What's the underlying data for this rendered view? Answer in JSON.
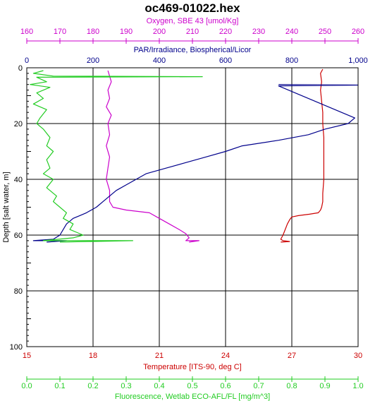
{
  "chart_data": {
    "type": "line",
    "title": "oc469-01022.hex",
    "y_axis": {
      "label": "Depth [salt water, m]",
      "range": [
        0,
        100
      ],
      "inverted": true,
      "ticks": [
        0,
        20,
        40,
        60,
        80,
        100
      ],
      "tick_labels": [
        "0",
        "20",
        "40",
        "60",
        "80",
        "100"
      ],
      "color": "#000000"
    },
    "x_axes": [
      {
        "id": "oxygen",
        "label": "Oxygen, SBE 43 [umol/Kg]",
        "position": "top",
        "range": [
          160,
          260
        ],
        "ticks": [
          160,
          170,
          180,
          190,
          200,
          210,
          220,
          230,
          240,
          250,
          260
        ],
        "tick_labels": [
          "160",
          "170",
          "180",
          "190",
          "200",
          "210",
          "220",
          "230",
          "240",
          "250",
          "260"
        ],
        "color": "#cc00cc"
      },
      {
        "id": "par",
        "label": "PAR/Irradiance, Biospherical/Licor",
        "position": "top",
        "range": [
          0,
          1000
        ],
        "ticks": [
          0,
          200,
          400,
          600,
          800,
          1000
        ],
        "tick_labels": [
          "0",
          "200",
          "400",
          "600",
          "800",
          "1,000"
        ],
        "color": "#00008b"
      },
      {
        "id": "temperature",
        "label": "Temperature [ITS-90, deg C]",
        "position": "bottom",
        "range": [
          15,
          30
        ],
        "ticks": [
          15,
          18,
          21,
          24,
          27,
          30
        ],
        "tick_labels": [
          "15",
          "18",
          "21",
          "24",
          "27",
          "30"
        ],
        "color": "#cc0000"
      },
      {
        "id": "fluorescence",
        "label": "Fluorescence, Wetlab ECO-AFL/FL [mg/m^3]",
        "position": "bottom",
        "range": [
          0,
          1
        ],
        "ticks": [
          0,
          0.1,
          0.2,
          0.3,
          0.4,
          0.5,
          0.6,
          0.7,
          0.8,
          0.9,
          1.0
        ],
        "tick_labels": [
          "0.0",
          "0.1",
          "0.2",
          "0.3",
          "0.4",
          "0.5",
          "0.6",
          "0.7",
          "0.8",
          "0.9",
          "1.0"
        ],
        "color": "#22cc22"
      }
    ],
    "grid": true,
    "series": [
      {
        "axis": "temperature",
        "color": "#cc0000",
        "points": [
          [
            28.4,
            0.5
          ],
          [
            28.3,
            2
          ],
          [
            28.35,
            5
          ],
          [
            28.3,
            8
          ],
          [
            28.35,
            12
          ],
          [
            28.4,
            16
          ],
          [
            28.4,
            20
          ],
          [
            28.45,
            25
          ],
          [
            28.45,
            30
          ],
          [
            28.45,
            35
          ],
          [
            28.45,
            40
          ],
          [
            28.4,
            45
          ],
          [
            28.4,
            48
          ],
          [
            28.35,
            50
          ],
          [
            28.3,
            51
          ],
          [
            28.2,
            52
          ],
          [
            27.8,
            52.5
          ],
          [
            27.3,
            53
          ],
          [
            27.0,
            53.5
          ],
          [
            26.9,
            54.5
          ],
          [
            26.8,
            56
          ],
          [
            26.7,
            58
          ],
          [
            26.6,
            60
          ],
          [
            26.5,
            61.5
          ],
          [
            26.6,
            62
          ],
          [
            26.9,
            62.3
          ],
          [
            26.5,
            62.5
          ]
        ]
      },
      {
        "axis": "oxygen",
        "color": "#cc00cc",
        "points": [
          [
            184.5,
            1
          ],
          [
            185,
            3
          ],
          [
            185.5,
            5
          ],
          [
            184.5,
            8
          ],
          [
            185,
            11
          ],
          [
            184,
            14
          ],
          [
            185.5,
            17
          ],
          [
            184.5,
            20
          ],
          [
            185,
            24
          ],
          [
            184,
            28
          ],
          [
            185,
            32
          ],
          [
            184.5,
            36
          ],
          [
            184,
            40
          ],
          [
            185,
            44
          ],
          [
            185,
            48
          ],
          [
            186,
            50
          ],
          [
            190,
            51
          ],
          [
            197,
            52
          ],
          [
            200,
            54
          ],
          [
            203,
            56
          ],
          [
            206,
            58
          ],
          [
            208,
            59.5
          ],
          [
            209,
            61
          ],
          [
            208,
            62
          ],
          [
            212,
            62
          ],
          [
            209,
            62.5
          ]
        ]
      },
      {
        "axis": "par",
        "color": "#00008b",
        "points": [
          [
            760,
            6
          ],
          [
            1000,
            6.2
          ],
          [
            760,
            6.5
          ],
          [
            990,
            18
          ],
          [
            970,
            20
          ],
          [
            900,
            22
          ],
          [
            850,
            24
          ],
          [
            760,
            26
          ],
          [
            650,
            28
          ],
          [
            600,
            30
          ],
          [
            540,
            32
          ],
          [
            480,
            34
          ],
          [
            420,
            36
          ],
          [
            360,
            38
          ],
          [
            330,
            40
          ],
          [
            300,
            42
          ],
          [
            270,
            44
          ],
          [
            250,
            46
          ],
          [
            230,
            48
          ],
          [
            210,
            50
          ],
          [
            180,
            52
          ],
          [
            160,
            53
          ],
          [
            140,
            54
          ],
          [
            120,
            56
          ],
          [
            110,
            58
          ],
          [
            100,
            60
          ],
          [
            80,
            61.5
          ],
          [
            20,
            62
          ],
          [
            120,
            62
          ],
          [
            60,
            62.5
          ]
        ]
      },
      {
        "axis": "fluorescence",
        "color": "#22cc22",
        "points": [
          [
            0.05,
            1
          ],
          [
            0.02,
            2
          ],
          [
            0.08,
            3
          ],
          [
            0.53,
            3.2
          ],
          [
            0.03,
            3.4
          ],
          [
            0.06,
            5
          ],
          [
            0.01,
            6
          ],
          [
            0.07,
            7
          ],
          [
            0.03,
            9
          ],
          [
            0.05,
            11
          ],
          [
            0.02,
            13
          ],
          [
            0.06,
            15
          ],
          [
            0.04,
            18
          ],
          [
            0.03,
            20
          ],
          [
            0.05,
            22
          ],
          [
            0.07,
            25
          ],
          [
            0.06,
            28
          ],
          [
            0.08,
            30
          ],
          [
            0.06,
            33
          ],
          [
            0.07,
            36
          ],
          [
            0.05,
            38
          ],
          [
            0.08,
            40
          ],
          [
            0.06,
            43
          ],
          [
            0.09,
            46
          ],
          [
            0.08,
            48
          ],
          [
            0.1,
            50
          ],
          [
            0.12,
            52
          ],
          [
            0.11,
            54
          ],
          [
            0.14,
            56
          ],
          [
            0.13,
            58
          ],
          [
            0.15,
            59
          ],
          [
            0.17,
            60
          ],
          [
            0.14,
            61
          ],
          [
            0.05,
            62
          ],
          [
            0.32,
            62
          ],
          [
            0.1,
            62.5
          ]
        ]
      }
    ]
  }
}
